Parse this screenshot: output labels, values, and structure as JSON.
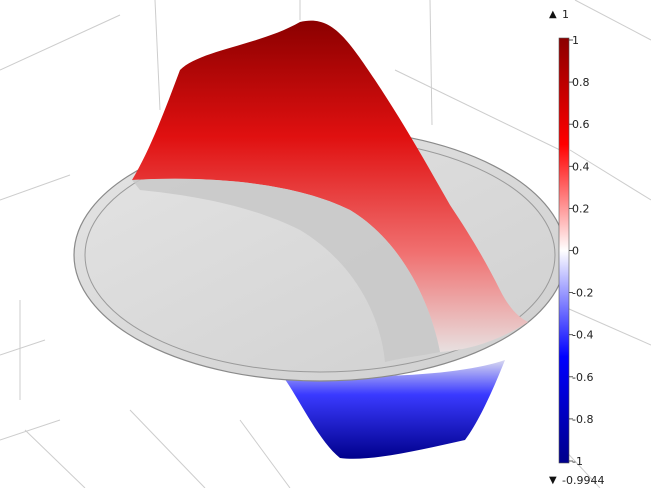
{
  "legend": {
    "max_marker": "1",
    "min_marker": "-0.9944",
    "ticks": [
      "1",
      "0.8",
      "0.6",
      "0.4",
      "0.2",
      "0",
      "-0.2",
      "-0.4",
      "-0.6",
      "-0.8",
      "-1"
    ],
    "range": [
      -1,
      1
    ],
    "colormap": [
      "#00008b",
      "#0000ff",
      "#ffffff",
      "#ff0000",
      "#8b0000"
    ]
  },
  "scene": {
    "surface_color_high": "#ff1a1a",
    "surface_color_low": "#1a1aff",
    "disc_color": "#dcdcdc",
    "grid_color": "#c8c8c8"
  }
}
